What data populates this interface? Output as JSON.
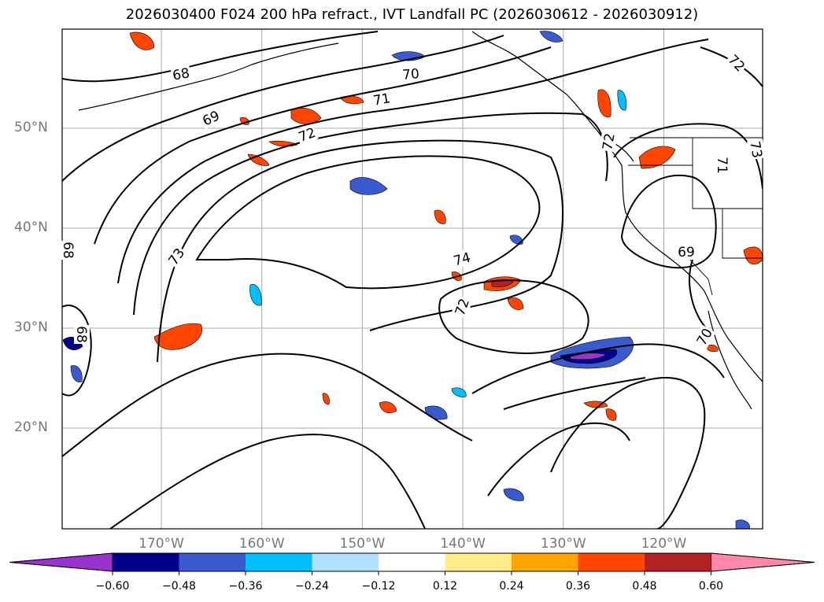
{
  "title": "2026030400 F024 200 hPa refract., IVT Landfall PC (2026030612 - 2026030912)",
  "map": {
    "lat_ticks": [
      {
        "value": 50,
        "label": "50°N"
      },
      {
        "value": 40,
        "label": "40°N"
      },
      {
        "value": 30,
        "label": "30°N"
      },
      {
        "value": 20,
        "label": "20°N"
      }
    ],
    "lon_ticks": [
      {
        "value": -170,
        "label": "170°W"
      },
      {
        "value": -160,
        "label": "160°W"
      },
      {
        "value": -150,
        "label": "150°W"
      },
      {
        "value": -140,
        "label": "140°W"
      },
      {
        "value": -130,
        "label": "130°W"
      },
      {
        "value": -120,
        "label": "120°W"
      }
    ],
    "contour_labels": [
      "68",
      "69",
      "70",
      "71",
      "72",
      "73",
      "74",
      "72",
      "69",
      "73",
      "71",
      "72",
      "68",
      "68",
      "70",
      "72"
    ],
    "grid": true
  },
  "colorbar": {
    "ticks": [
      "−0.60",
      "−0.48",
      "−0.36",
      "−0.24",
      "−0.12",
      "0.12",
      "0.24",
      "0.36",
      "0.48",
      "0.60"
    ],
    "colors": [
      "#9a32cd",
      "#00008b",
      "#3a5bd0",
      "#00bfff",
      "#b0e2ff",
      "#ffffff",
      "#ffeb8a",
      "#ffa500",
      "#ff4500",
      "#b22222",
      "#ff88aa"
    ],
    "extend": "both"
  }
}
